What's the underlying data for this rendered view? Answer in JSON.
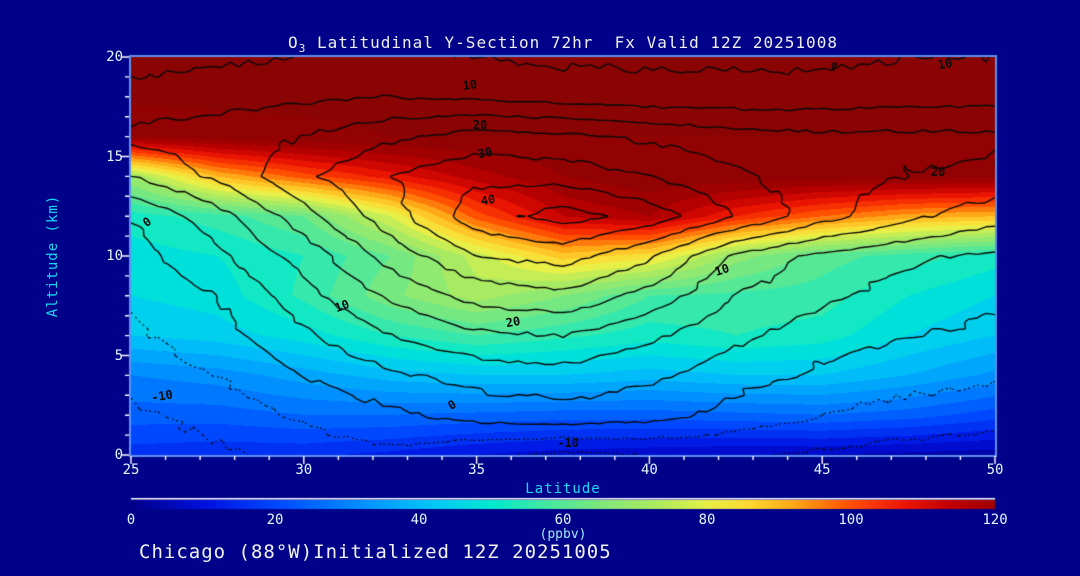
{
  "chart_data": {
    "type": "filled-contour",
    "title_o": "O",
    "title_sub": "3",
    "title_rest": " Latitudinal Y-Section 72hr  Fx Valid 12Z 20251008",
    "footer": "Chicago (88°W)Initialized 12Z 20251005",
    "x_axis": {
      "label": "Latitude",
      "min": 25,
      "max": 50,
      "major_ticks": [
        25,
        30,
        35,
        40,
        45,
        50
      ],
      "minor_step": 1
    },
    "y_axis": {
      "label": "Altitude (km)",
      "min": 0,
      "max": 20,
      "major_ticks": [
        0,
        5,
        10,
        15,
        20
      ],
      "minor_step": 1
    },
    "colorbar": {
      "label": "(ppbv)",
      "min": 0,
      "max": 120,
      "ticks": [
        0,
        20,
        40,
        60,
        80,
        100,
        120
      ]
    },
    "fill_grid": {
      "comment": "ozone ppbv on lat x alt grid; rows = alts ascending",
      "lats": [
        25,
        27.5,
        30,
        32.5,
        35,
        37.5,
        40,
        42.5,
        45,
        47.5,
        50
      ],
      "alts": [
        0,
        2,
        4,
        6,
        8,
        10,
        12,
        14,
        16,
        18,
        20
      ],
      "values": [
        [
          16,
          15,
          15,
          13,
          10,
          8,
          7,
          6,
          6,
          5,
          4
        ],
        [
          24,
          24,
          26,
          26,
          25,
          24,
          24,
          25,
          26,
          24,
          20
        ],
        [
          30,
          32,
          36,
          40,
          42,
          42,
          40,
          42,
          42,
          38,
          33
        ],
        [
          42,
          44,
          48,
          54,
          58,
          55,
          52,
          54,
          52,
          46,
          42
        ],
        [
          46,
          48,
          55,
          65,
          72,
          66,
          58,
          57,
          56,
          50,
          46
        ],
        [
          48,
          50,
          54,
          62,
          76,
          88,
          84,
          68,
          60,
          56,
          52
        ],
        [
          52,
          56,
          62,
          78,
          100,
          114,
          118,
          106,
          98,
          92,
          90
        ],
        [
          70,
          90,
          100,
          108,
          116,
          122,
          125,
          125,
          124,
          124,
          123
        ],
        [
          122,
          124,
          125,
          126,
          126,
          126,
          126,
          126,
          126,
          126,
          126
        ],
        [
          127,
          127,
          127,
          127,
          127,
          127,
          127,
          127,
          127,
          127,
          127
        ],
        [
          127,
          127,
          127,
          127,
          127,
          127,
          127,
          127,
          127,
          127,
          127
        ]
      ]
    },
    "contour_grid": {
      "comment": "black contour field (dotted = negative); rows = alts ascending",
      "lats": [
        25,
        27.5,
        30,
        32.5,
        35,
        37.5,
        40,
        42.5,
        45,
        47.5,
        50
      ],
      "alts": [
        0,
        2,
        4,
        6,
        8,
        10,
        12,
        14,
        16,
        18,
        20
      ],
      "values": [
        [
          -13,
          -11,
          -8,
          -6,
          -9,
          -11,
          -10,
          -9,
          -11,
          -12,
          -13
        ],
        [
          -11,
          -8,
          -4,
          -1,
          2,
          3,
          2,
          -2,
          -5,
          -7,
          -8
        ],
        [
          -8,
          -5,
          0,
          4,
          7,
          8,
          6,
          2,
          -1,
          -3,
          -4
        ],
        [
          -6,
          -2,
          4,
          10,
          14,
          15,
          11,
          6,
          2,
          0,
          -1
        ],
        [
          -4,
          0,
          8,
          16,
          22,
          24,
          18,
          10,
          6,
          3,
          1
        ],
        [
          -2,
          4,
          12,
          22,
          30,
          32,
          26,
          14,
          9,
          6,
          4
        ],
        [
          0,
          8,
          18,
          28,
          38,
          42,
          38,
          30,
          22,
          16,
          12
        ],
        [
          10,
          16,
          24,
          30,
          34,
          33,
          30,
          26,
          22,
          20,
          19
        ],
        [
          16,
          18,
          20,
          24,
          27,
          26,
          24,
          22,
          21,
          21,
          21
        ],
        [
          12,
          13,
          14,
          15,
          14,
          13,
          12,
          12,
          12,
          13,
          13
        ],
        [
          8,
          9,
          10,
          11,
          10,
          9,
          9,
          9,
          9,
          10,
          10
        ]
      ]
    },
    "contour_levels": [
      -10,
      -5,
      0,
      5,
      10,
      15,
      20,
      25,
      30,
      35,
      40
    ],
    "contour_labels": [
      {
        "text": "10",
        "fx": 0.392,
        "fy": 0.07,
        "rot": -8
      },
      {
        "text": "20",
        "fx": 0.404,
        "fy": 0.171,
        "rot": 0
      },
      {
        "text": "30",
        "fx": 0.41,
        "fy": 0.241,
        "rot": -12
      },
      {
        "text": "40",
        "fx": 0.413,
        "fy": 0.359,
        "rot": -10
      },
      {
        "text": "10",
        "fx": 0.942,
        "fy": 0.018,
        "rot": -10
      },
      {
        "text": "20",
        "fx": 0.934,
        "fy": 0.289,
        "rot": 0
      },
      {
        "text": "0",
        "fx": 0.019,
        "fy": 0.415,
        "rot": -35
      },
      {
        "text": "10",
        "fx": 0.244,
        "fy": 0.626,
        "rot": -20
      },
      {
        "text": "20",
        "fx": 0.442,
        "fy": 0.666,
        "rot": -10
      },
      {
        "text": "10",
        "fx": 0.684,
        "fy": 0.535,
        "rot": -18
      },
      {
        "text": "-10",
        "fx": 0.036,
        "fy": 0.852,
        "rot": -10
      },
      {
        "text": "0",
        "fx": 0.372,
        "fy": 0.874,
        "rot": -30
      },
      {
        "text": "-10",
        "fx": 0.506,
        "fy": 0.97,
        "rot": 0
      }
    ],
    "colormap": [
      [
        0,
        "#000088"
      ],
      [
        10,
        "#0010e0"
      ],
      [
        20,
        "#0048ff"
      ],
      [
        32,
        "#0090ff"
      ],
      [
        42,
        "#00c8f8"
      ],
      [
        50,
        "#00e8d0"
      ],
      [
        58,
        "#48e8a0"
      ],
      [
        66,
        "#84e878"
      ],
      [
        74,
        "#b4ec5c"
      ],
      [
        80,
        "#e8f048"
      ],
      [
        86,
        "#ffd830"
      ],
      [
        92,
        "#ffa818"
      ],
      [
        100,
        "#ff5000"
      ],
      [
        107,
        "#f01800"
      ],
      [
        114,
        "#c00000"
      ],
      [
        121,
        "#990000"
      ],
      [
        127,
        "#8b0404"
      ]
    ],
    "colors": {
      "background": "#000389",
      "frame": "#5f8ff0",
      "tick_mark": "#ffffff",
      "tick_label": "#dff8ff",
      "axis_label": "#17d9f2",
      "title": "#efefef",
      "footer": "#f2f2f2",
      "contour_line": "#0a0a0a",
      "colorbar_top_line": "#ffffff"
    }
  }
}
